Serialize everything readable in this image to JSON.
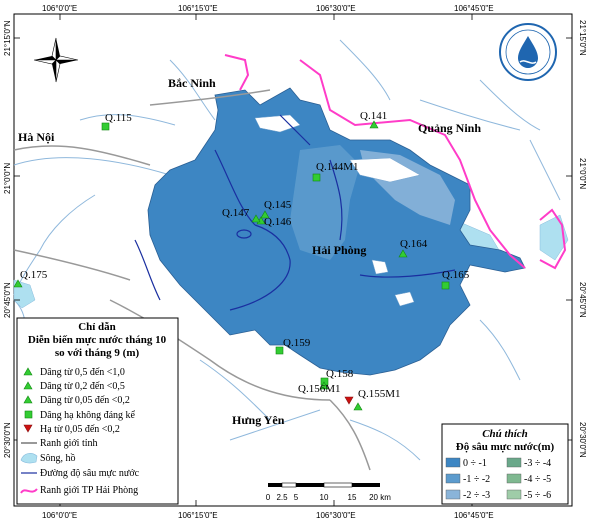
{
  "map": {
    "grid": {
      "top_labels": [
        "106°0'0\"E",
        "106°15'0\"E",
        "106°30'0\"E",
        "106°45'0\"E"
      ],
      "bottom_labels": [
        "106°0'0\"E",
        "106°15'0\"E",
        "106°30'0\"E",
        "106°45'0\"E"
      ],
      "left_labels": [
        "21°15'0\"N",
        "21°0'0\"N",
        "20°45'0\"N",
        "20°30'0\"N"
      ],
      "right_labels": [
        "21°15'0\"N",
        "21°0'0\"N",
        "20°45'0\"N",
        "20°30'0\"N"
      ]
    },
    "places": {
      "bac_ninh": "Bắc Ninh",
      "ha_noi": "Hà Nội",
      "quang_ninh": "Quảng Ninh",
      "hai_phong": "Hải Phòng",
      "hung_yen": "Hưng Yên"
    },
    "stations": [
      {
        "id": "q115",
        "label": "Q.115",
        "type": "stable"
      },
      {
        "id": "q141",
        "label": "Q.141",
        "type": "rise_005_02"
      },
      {
        "id": "q144m1",
        "label": "Q.144M1",
        "type": "stable"
      },
      {
        "id": "q145",
        "label": "Q.145",
        "type": "rise_005_02"
      },
      {
        "id": "q146",
        "label": "Q.146",
        "type": "rise_005_02"
      },
      {
        "id": "q147",
        "label": "Q.147",
        "type": "rise_005_02"
      },
      {
        "id": "q164",
        "label": "Q.164",
        "type": "rise_005_02"
      },
      {
        "id": "q165",
        "label": "Q.165",
        "type": "stable"
      },
      {
        "id": "q175",
        "label": "Q.175",
        "type": "rise_005_02"
      },
      {
        "id": "q159",
        "label": "Q.159",
        "type": "stable"
      },
      {
        "id": "q158",
        "label": "Q.158",
        "type": "stable"
      },
      {
        "id": "q156m1",
        "label": "Q.156M1",
        "type": "rise_005_02"
      },
      {
        "id": "q155m1",
        "label": "Q.155M1",
        "type": "fall"
      }
    ],
    "colors": {
      "depth_0_1": "#3d86c3",
      "depth_1_2": "#5c9bcd",
      "depth_2_3": "#8ab4d9",
      "water": "#aee0f0",
      "province_boundary": "#999999",
      "city_boundary": "#ff3cc8",
      "contour": "#1a2fa0",
      "rise": "#33cc33",
      "fall": "#cc1111"
    }
  },
  "legend": {
    "title_line1": "Chỉ dẫn",
    "title_line2": "Diễn biến mực nước tháng 10",
    "title_line3": "so với tháng 9 (m)",
    "items": [
      {
        "label": "Dâng từ 0,5 đến <1,0"
      },
      {
        "label": "Dâng từ 0,2 đến <0,5"
      },
      {
        "label": "Dâng từ 0,05 đến <0,2"
      },
      {
        "label": "Dâng hạ không đáng kể"
      },
      {
        "label": "Hạ từ 0,05 đến <0,2"
      },
      {
        "label": "Ranh giới tỉnh"
      },
      {
        "label": "Sông, hồ"
      },
      {
        "label": "Đường độ sâu mực nước"
      },
      {
        "label": "Ranh giới TP Hải Phòng"
      }
    ]
  },
  "depth_legend": {
    "title_line1": "Chú thích",
    "title_line2": "Độ sâu mực nước(m)",
    "classes": [
      "0 ÷ -1",
      "-1 ÷ -2",
      "-2 ÷ -3",
      "-3 ÷ -4",
      "-4 ÷ -5",
      "-5 ÷ -6"
    ],
    "class_colors": [
      "#3d86c3",
      "#5c9bcd",
      "#8ab4d9",
      "#6aa88a",
      "#7fb890",
      "#9fcca8"
    ]
  },
  "scale_bar": {
    "ticks": [
      "0",
      "2.5",
      "5",
      "10",
      "15",
      "20 km"
    ]
  }
}
